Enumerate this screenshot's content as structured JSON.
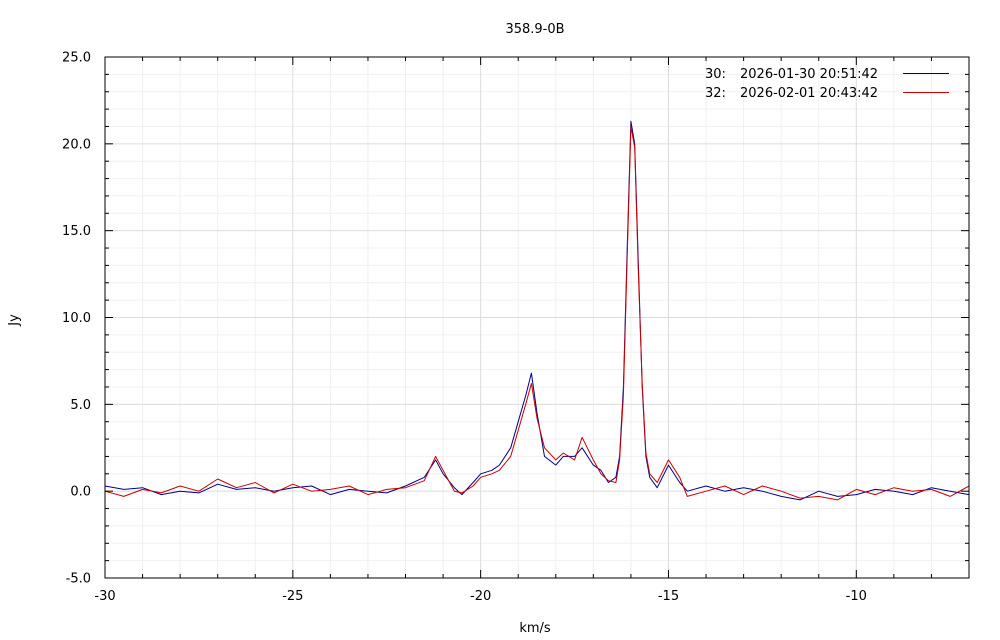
{
  "chart_data": {
    "type": "line",
    "title": "358.9-0B",
    "xlabel": "km/s",
    "ylabel": "Jy",
    "xlim": [
      -30,
      -7
    ],
    "ylim": [
      -5,
      25
    ],
    "x_ticks": [
      -30,
      -25,
      -20,
      -15,
      -10
    ],
    "x_tick_labels": [
      "-30",
      "-25",
      "-20",
      "-15",
      "-10"
    ],
    "y_ticks": [
      -5,
      0,
      5,
      10,
      15,
      20,
      25
    ],
    "y_tick_labels": [
      "-5.0",
      "0.0",
      "5.0",
      "10.0",
      "15.0",
      "20.0",
      "25.0"
    ],
    "grid": true,
    "legend_position": "top-right",
    "series": [
      {
        "name": "30:",
        "timestamp": "2026-01-30 20:51:42",
        "color": "#00008b",
        "x": [
          -30.0,
          -29.5,
          -29.0,
          -28.5,
          -28.0,
          -27.5,
          -27.0,
          -26.5,
          -26.0,
          -25.5,
          -25.0,
          -24.5,
          -24.0,
          -23.5,
          -23.0,
          -22.5,
          -22.0,
          -21.5,
          -21.2,
          -21.0,
          -20.7,
          -20.5,
          -20.2,
          -20.0,
          -19.7,
          -19.5,
          -19.2,
          -19.0,
          -18.8,
          -18.65,
          -18.5,
          -18.3,
          -18.0,
          -17.8,
          -17.5,
          -17.3,
          -17.0,
          -16.8,
          -16.6,
          -16.4,
          -16.3,
          -16.2,
          -16.1,
          -16.0,
          -15.9,
          -15.8,
          -15.7,
          -15.6,
          -15.5,
          -15.3,
          -15.0,
          -14.7,
          -14.5,
          -14.0,
          -13.5,
          -13.0,
          -12.5,
          -12.0,
          -11.5,
          -11.0,
          -10.5,
          -10.0,
          -9.5,
          -9.0,
          -8.5,
          -8.0,
          -7.5,
          -7.0
        ],
        "y": [
          0.3,
          0.1,
          0.2,
          -0.2,
          0.0,
          -0.1,
          0.4,
          0.1,
          0.2,
          0.0,
          0.2,
          0.3,
          -0.2,
          0.1,
          0.0,
          -0.1,
          0.3,
          0.8,
          1.8,
          1.0,
          0.2,
          -0.2,
          0.5,
          1.0,
          1.2,
          1.5,
          2.5,
          4.0,
          5.5,
          6.8,
          4.5,
          2.0,
          1.5,
          2.0,
          2.0,
          2.5,
          1.5,
          1.2,
          0.5,
          0.8,
          2.0,
          6.0,
          14.0,
          21.3,
          20.0,
          13.0,
          6.0,
          2.0,
          0.8,
          0.2,
          1.5,
          0.5,
          0.0,
          0.3,
          0.0,
          0.2,
          0.0,
          -0.3,
          -0.5,
          0.0,
          -0.3,
          -0.2,
          0.1,
          0.0,
          -0.2,
          0.2,
          0.0,
          -0.2
        ]
      },
      {
        "name": "32:",
        "timestamp": "2026-02-01 20:43:42",
        "color": "#cc0000",
        "x": [
          -30.0,
          -29.5,
          -29.0,
          -28.5,
          -28.0,
          -27.5,
          -27.0,
          -26.5,
          -26.0,
          -25.5,
          -25.0,
          -24.5,
          -24.0,
          -23.5,
          -23.0,
          -22.5,
          -22.0,
          -21.5,
          -21.2,
          -21.0,
          -20.7,
          -20.5,
          -20.2,
          -20.0,
          -19.7,
          -19.5,
          -19.2,
          -19.0,
          -18.8,
          -18.65,
          -18.5,
          -18.3,
          -18.0,
          -17.8,
          -17.5,
          -17.3,
          -17.0,
          -16.8,
          -16.6,
          -16.4,
          -16.3,
          -16.2,
          -16.1,
          -16.0,
          -15.9,
          -15.8,
          -15.7,
          -15.6,
          -15.5,
          -15.3,
          -15.0,
          -14.7,
          -14.5,
          -14.0,
          -13.5,
          -13.0,
          -12.5,
          -12.0,
          -11.5,
          -11.0,
          -10.5,
          -10.0,
          -9.5,
          -9.0,
          -8.5,
          -8.0,
          -7.5,
          -7.0
        ],
        "y": [
          0.0,
          -0.3,
          0.1,
          -0.1,
          0.3,
          0.0,
          0.7,
          0.2,
          0.5,
          -0.1,
          0.4,
          0.0,
          0.1,
          0.3,
          -0.2,
          0.1,
          0.2,
          0.6,
          2.0,
          1.2,
          0.0,
          -0.1,
          0.3,
          0.8,
          1.0,
          1.2,
          2.0,
          3.5,
          5.0,
          6.2,
          4.2,
          2.5,
          1.8,
          2.2,
          1.8,
          3.1,
          1.8,
          1.0,
          0.6,
          0.5,
          1.8,
          5.5,
          13.5,
          21.0,
          19.8,
          12.5,
          6.2,
          2.2,
          1.0,
          0.5,
          1.8,
          0.8,
          -0.3,
          0.0,
          0.3,
          -0.2,
          0.3,
          0.0,
          -0.4,
          -0.3,
          -0.5,
          0.1,
          -0.2,
          0.2,
          0.0,
          0.1,
          -0.3,
          0.3
        ]
      }
    ]
  }
}
